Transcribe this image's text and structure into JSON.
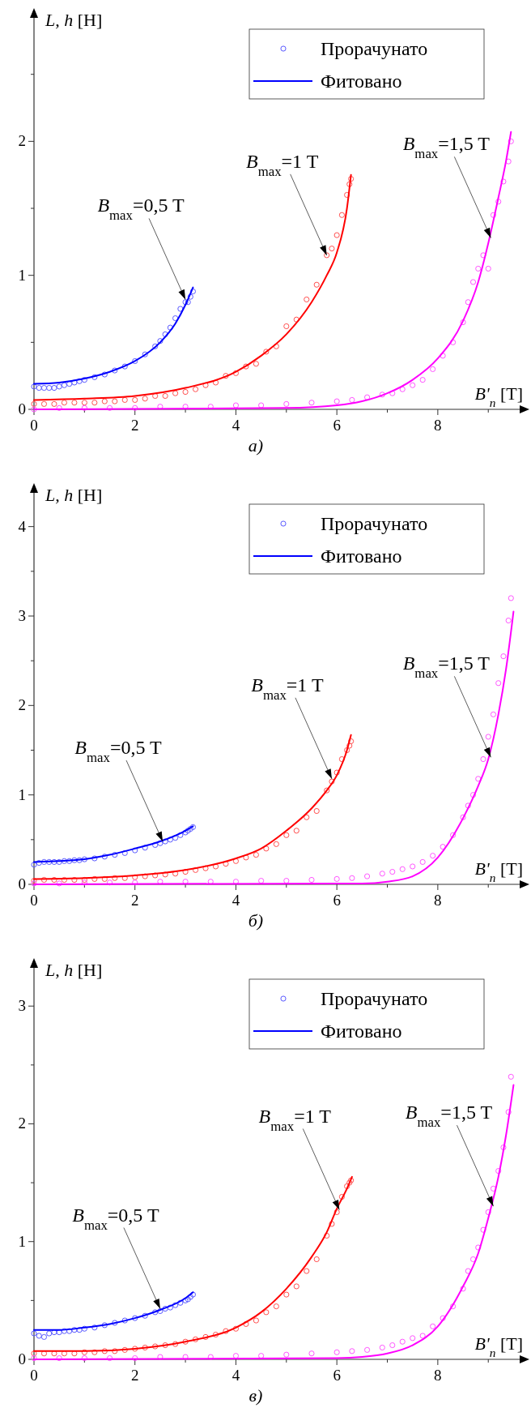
{
  "chart_data": [
    {
      "type": "scatter",
      "title": "а)",
      "xlabel": "B'$_{n}$ [T]",
      "ylabel": "L, h [H]",
      "xlim": [
        0,
        9.75
      ],
      "ylim": [
        0,
        2.97
      ],
      "xticks": [
        0,
        {
          "value": 1,
          "label": null
        },
        2,
        {
          "value": 3,
          "label": null
        },
        4,
        {
          "value": 5,
          "label": null
        },
        6,
        {
          "value": 7,
          "label": null
        },
        8,
        {
          "value": 9,
          "label": null
        }
      ],
      "yticks": [
        0,
        {
          "value": 0.5,
          "label": null
        },
        1,
        {
          "value": 1.5,
          "label": null
        },
        2,
        {
          "value": 2.5,
          "label": null
        }
      ],
      "legend": "top right",
      "annotations": [
        {
          "text": "B$_{max}$=0,5 T",
          "x": 3.0,
          "y": 0.82
        },
        {
          "text": "B$_{max}$=1 T",
          "x": 5.8,
          "y": 1.15
        },
        {
          "text": "B$_{max}$=1,5 T",
          "x": 9.05,
          "y": 1.28
        }
      ],
      "series": [
        {
          "name": "Прорачунато",
          "marker": "circle",
          "color": "#5a5aff",
          "x": [
            0,
            0.1,
            0.2,
            0.3,
            0.4,
            0.5,
            0.6,
            0.7,
            0.8,
            0.9,
            1.0,
            1.2,
            1.4,
            1.6,
            1.8,
            2.0,
            2.2,
            2.4,
            2.5,
            2.6,
            2.7,
            2.8,
            2.9,
            3.0,
            3.05,
            3.1,
            3.15
          ],
          "values": [
            0.17,
            0.16,
            0.16,
            0.16,
            0.16,
            0.17,
            0.18,
            0.19,
            0.2,
            0.21,
            0.22,
            0.24,
            0.26,
            0.29,
            0.32,
            0.36,
            0.41,
            0.47,
            0.51,
            0.56,
            0.61,
            0.68,
            0.75,
            0.8,
            0.8,
            0.84,
            0.88
          ]
        },
        {
          "name": "Фитовано",
          "type": "line",
          "marker": "none",
          "color": "#0000ff",
          "x": [
            0,
            0.5,
            1,
            1.5,
            2,
            2.5,
            2.8,
            3,
            3.15
          ],
          "values": [
            0.19,
            0.2,
            0.23,
            0.28,
            0.36,
            0.5,
            0.64,
            0.78,
            0.91
          ]
        },
        {
          "marker": "circle",
          "color": "#ff5050",
          "x": [
            0,
            0.2,
            0.4,
            0.6,
            0.8,
            1.0,
            1.2,
            1.4,
            1.6,
            1.8,
            2.0,
            2.2,
            2.4,
            2.6,
            2.8,
            3.0,
            3.2,
            3.4,
            3.6,
            3.8,
            4.0,
            4.2,
            4.4,
            4.6,
            4.8,
            5.0,
            5.2,
            5.4,
            5.6,
            5.8,
            5.9,
            6.0,
            6.1,
            6.2,
            6.25,
            6.28
          ],
          "values": [
            0.04,
            0.04,
            0.04,
            0.05,
            0.05,
            0.05,
            0.05,
            0.06,
            0.06,
            0.07,
            0.07,
            0.08,
            0.1,
            0.1,
            0.12,
            0.13,
            0.15,
            0.18,
            0.2,
            0.25,
            0.27,
            0.32,
            0.34,
            0.43,
            0.47,
            0.62,
            0.67,
            0.82,
            0.93,
            1.15,
            1.2,
            1.3,
            1.45,
            1.6,
            1.68,
            1.72
          ]
        },
        {
          "type": "line",
          "marker": "none",
          "color": "#ff0000",
          "x": [
            0,
            1,
            2,
            3,
            4,
            4.5,
            5,
            5.5,
            5.8,
            6,
            6.2,
            6.28
          ],
          "values": [
            0.07,
            0.08,
            0.1,
            0.16,
            0.28,
            0.4,
            0.56,
            0.8,
            1.0,
            1.17,
            1.5,
            1.75
          ]
        },
        {
          "marker": "circle",
          "color": "#ff55ff",
          "x": [
            0,
            0.5,
            1,
            1.5,
            2,
            2.5,
            3,
            3.5,
            4,
            4.5,
            5,
            5.5,
            6,
            6.3,
            6.6,
            6.9,
            7.1,
            7.3,
            7.5,
            7.7,
            7.9,
            8.1,
            8.3,
            8.5,
            8.6,
            8.7,
            8.8,
            8.9,
            9.0,
            9.1,
            9.2,
            9.3,
            9.4,
            9.45
          ],
          "values": [
            0,
            0.01,
            0.01,
            0.01,
            0.01,
            0.02,
            0.02,
            0.02,
            0.03,
            0.03,
            0.04,
            0.05,
            0.06,
            0.07,
            0.09,
            0.11,
            0.12,
            0.15,
            0.18,
            0.22,
            0.3,
            0.4,
            0.5,
            0.65,
            0.8,
            0.95,
            1.05,
            1.15,
            1.05,
            1.45,
            1.55,
            1.7,
            1.85,
            2.0
          ]
        },
        {
          "type": "line",
          "marker": "none",
          "color": "#ff00ff",
          "x": [
            0,
            5,
            6,
            6.5,
            7,
            7.5,
            8,
            8.5,
            8.8,
            9,
            9.2,
            9.35,
            9.45
          ],
          "values": [
            0,
            0.01,
            0.03,
            0.06,
            0.12,
            0.22,
            0.38,
            0.66,
            0.95,
            1.24,
            1.58,
            1.85,
            2.07
          ]
        }
      ]
    },
    {
      "type": "scatter",
      "title": "б)",
      "xlabel": "B'$_{n}$ [T]",
      "ylabel": "L, h [H]",
      "xlim": [
        0,
        9.75
      ],
      "ylim": [
        0,
        4.45
      ],
      "xticks": [
        0,
        {
          "value": 1,
          "label": null
        },
        2,
        {
          "value": 3,
          "label": null
        },
        4,
        {
          "value": 5,
          "label": null
        },
        6,
        {
          "value": 7,
          "label": null
        },
        8,
        {
          "value": 9,
          "label": null
        }
      ],
      "yticks": [
        0,
        {
          "value": 0.5,
          "label": null
        },
        1,
        {
          "value": 1.5,
          "label": null
        },
        2,
        {
          "value": 2.5,
          "label": null
        },
        3,
        {
          "value": 3.5,
          "label": null
        },
        4
      ],
      "legend": "top right",
      "annotations": [
        {
          "text": "B$_{max}$=0,5 T",
          "x": 2.55,
          "y": 0.48
        },
        {
          "text": "B$_{max}$=1 T",
          "x": 5.9,
          "y": 1.18
        },
        {
          "text": "B$_{max}$=1,5 T",
          "x": 9.05,
          "y": 1.42
        }
      ],
      "series": [
        {
          "name": "Прорачунато",
          "marker": "circle",
          "color": "#5a5aff",
          "x": [
            0,
            0.1,
            0.2,
            0.3,
            0.4,
            0.5,
            0.6,
            0.7,
            0.8,
            0.9,
            1.0,
            1.2,
            1.4,
            1.6,
            1.8,
            2.0,
            2.2,
            2.4,
            2.5,
            2.6,
            2.7,
            2.8,
            2.9,
            3.0,
            3.05,
            3.1,
            3.15
          ],
          "values": [
            0.22,
            0.24,
            0.25,
            0.25,
            0.25,
            0.25,
            0.26,
            0.26,
            0.27,
            0.27,
            0.28,
            0.29,
            0.31,
            0.33,
            0.35,
            0.38,
            0.41,
            0.44,
            0.46,
            0.48,
            0.5,
            0.52,
            0.55,
            0.58,
            0.6,
            0.62,
            0.64
          ]
        },
        {
          "name": "Фитовано",
          "type": "line",
          "marker": "none",
          "color": "#0000ff",
          "x": [
            0,
            0.5,
            1,
            1.5,
            2,
            2.5,
            3,
            3.15
          ],
          "values": [
            0.25,
            0.26,
            0.28,
            0.33,
            0.4,
            0.48,
            0.6,
            0.65
          ]
        },
        {
          "marker": "circle",
          "color": "#ff5050",
          "x": [
            0,
            0.2,
            0.4,
            0.6,
            0.8,
            1.0,
            1.2,
            1.4,
            1.6,
            1.8,
            2.0,
            2.2,
            2.4,
            2.6,
            2.8,
            3.0,
            3.2,
            3.4,
            3.6,
            3.8,
            4.0,
            4.2,
            4.4,
            4.6,
            4.8,
            5.0,
            5.2,
            5.4,
            5.6,
            5.8,
            5.9,
            6.0,
            6.1,
            6.2,
            6.25,
            6.28
          ],
          "values": [
            0.04,
            0.05,
            0.05,
            0.05,
            0.05,
            0.05,
            0.06,
            0.06,
            0.07,
            0.07,
            0.08,
            0.09,
            0.1,
            0.11,
            0.12,
            0.14,
            0.16,
            0.18,
            0.2,
            0.23,
            0.26,
            0.3,
            0.33,
            0.4,
            0.45,
            0.55,
            0.6,
            0.75,
            0.82,
            1.05,
            1.15,
            1.25,
            1.4,
            1.5,
            1.55,
            1.6
          ]
        },
        {
          "type": "line",
          "marker": "none",
          "color": "#ff0000",
          "x": [
            0,
            1,
            2,
            3,
            4,
            4.5,
            5,
            5.5,
            5.8,
            6,
            6.2,
            6.28
          ],
          "values": [
            0.06,
            0.07,
            0.1,
            0.16,
            0.29,
            0.4,
            0.6,
            0.85,
            1.05,
            1.22,
            1.5,
            1.67
          ]
        },
        {
          "marker": "circle",
          "color": "#ff55ff",
          "x": [
            0,
            0.5,
            1,
            1.5,
            2,
            2.5,
            3,
            3.5,
            4,
            4.5,
            5,
            5.5,
            6,
            6.3,
            6.6,
            6.9,
            7.1,
            7.3,
            7.5,
            7.7,
            7.9,
            8.1,
            8.3,
            8.5,
            8.6,
            8.7,
            8.8,
            8.9,
            9.0,
            9.1,
            9.2,
            9.3,
            9.4,
            9.45
          ],
          "values": [
            0.01,
            0.01,
            0.02,
            0.02,
            0.02,
            0.03,
            0.03,
            0.03,
            0.03,
            0.04,
            0.04,
            0.05,
            0.06,
            0.07,
            0.09,
            0.12,
            0.14,
            0.17,
            0.2,
            0.25,
            0.32,
            0.42,
            0.55,
            0.75,
            0.88,
            1.0,
            1.18,
            1.4,
            1.65,
            1.9,
            2.25,
            2.55,
            2.95,
            3.2
          ]
        },
        {
          "type": "line",
          "marker": "none",
          "color": "#ff00ff",
          "x": [
            0,
            6,
            6.5,
            7,
            7.5,
            8,
            8.5,
            8.8,
            9,
            9.2,
            9.35,
            9.5
          ],
          "values": [
            0,
            0.01,
            0.01,
            0.03,
            0.09,
            0.3,
            0.74,
            1.1,
            1.4,
            1.9,
            2.4,
            3.05
          ]
        }
      ]
    },
    {
      "type": "scatter",
      "title": "в)",
      "xlabel": "B'$_{n}$ [T]",
      "ylabel": "L, h [H]",
      "xlim": [
        0,
        9.75
      ],
      "ylim": [
        0,
        3.38
      ],
      "xticks": [
        0,
        {
          "value": 1,
          "label": null
        },
        2,
        {
          "value": 3,
          "label": null
        },
        4,
        {
          "value": 5,
          "label": null
        },
        6,
        {
          "value": 7,
          "label": null
        },
        8,
        {
          "value": 9,
          "label": null
        }
      ],
      "yticks": [
        0,
        {
          "value": 0.5,
          "label": null
        },
        1,
        {
          "value": 1.5,
          "label": null
        },
        2,
        {
          "value": 2.5,
          "label": null
        },
        3
      ],
      "legend": "top right",
      "annotations": [
        {
          "text": "B$_{max}$=0,5 T",
          "x": 2.5,
          "y": 0.43
        },
        {
          "text": "B$_{max}$=1 T",
          "x": 6.05,
          "y": 1.27
        },
        {
          "text": "B$_{max}$=1,5 T",
          "x": 9.1,
          "y": 1.3
        }
      ],
      "series": [
        {
          "name": "Прорачунато",
          "marker": "circle",
          "color": "#5a5aff",
          "x": [
            0,
            0.1,
            0.2,
            0.3,
            0.4,
            0.5,
            0.6,
            0.7,
            0.8,
            0.9,
            1.0,
            1.2,
            1.4,
            1.6,
            1.8,
            2.0,
            2.2,
            2.4,
            2.5,
            2.6,
            2.7,
            2.8,
            2.9,
            3.0,
            3.05,
            3.1,
            3.15
          ],
          "values": [
            0.22,
            0.2,
            0.19,
            0.22,
            0.23,
            0.23,
            0.24,
            0.24,
            0.25,
            0.25,
            0.26,
            0.27,
            0.29,
            0.31,
            0.33,
            0.35,
            0.37,
            0.4,
            0.41,
            0.43,
            0.44,
            0.46,
            0.48,
            0.5,
            0.51,
            0.53,
            0.55
          ]
        },
        {
          "name": "Фитовано",
          "type": "line",
          "marker": "none",
          "color": "#0000ff",
          "x": [
            0,
            0.5,
            1,
            1.5,
            2,
            2.5,
            3,
            3.15
          ],
          "values": [
            0.25,
            0.25,
            0.27,
            0.3,
            0.35,
            0.42,
            0.52,
            0.57
          ]
        },
        {
          "marker": "circle",
          "color": "#ff5050",
          "x": [
            0,
            0.2,
            0.4,
            0.6,
            0.8,
            1.0,
            1.2,
            1.4,
            1.6,
            1.8,
            2.0,
            2.2,
            2.4,
            2.6,
            2.8,
            3.0,
            3.2,
            3.4,
            3.6,
            3.8,
            4.0,
            4.2,
            4.4,
            4.6,
            4.8,
            5.0,
            5.2,
            5.4,
            5.6,
            5.8,
            5.9,
            6.0,
            6.1,
            6.2,
            6.25,
            6.28
          ],
          "values": [
            0.05,
            0.05,
            0.05,
            0.05,
            0.05,
            0.06,
            0.06,
            0.07,
            0.07,
            0.08,
            0.09,
            0.1,
            0.11,
            0.12,
            0.13,
            0.15,
            0.17,
            0.19,
            0.21,
            0.24,
            0.26,
            0.3,
            0.33,
            0.4,
            0.45,
            0.55,
            0.62,
            0.75,
            0.85,
            1.05,
            1.15,
            1.25,
            1.38,
            1.47,
            1.5,
            1.52
          ]
        },
        {
          "type": "line",
          "marker": "none",
          "color": "#ff0000",
          "x": [
            0,
            1,
            2,
            3,
            4,
            4.5,
            5,
            5.5,
            5.8,
            6,
            6.2,
            6.3
          ],
          "values": [
            0.07,
            0.07,
            0.09,
            0.15,
            0.27,
            0.4,
            0.6,
            0.87,
            1.08,
            1.28,
            1.45,
            1.55
          ]
        },
        {
          "marker": "circle",
          "color": "#ff55ff",
          "x": [
            0,
            0.5,
            1,
            1.5,
            2,
            2.5,
            3,
            3.5,
            4,
            4.5,
            5,
            5.5,
            6,
            6.3,
            6.6,
            6.9,
            7.1,
            7.3,
            7.5,
            7.7,
            7.9,
            8.1,
            8.3,
            8.5,
            8.6,
            8.7,
            8.8,
            8.9,
            9.0,
            9.1,
            9.2,
            9.3,
            9.4,
            9.45
          ],
          "values": [
            0.01,
            0.01,
            0.01,
            0.01,
            0.01,
            0.02,
            0.02,
            0.02,
            0.03,
            0.03,
            0.04,
            0.05,
            0.06,
            0.07,
            0.08,
            0.1,
            0.12,
            0.15,
            0.18,
            0.2,
            0.28,
            0.35,
            0.45,
            0.6,
            0.75,
            0.85,
            0.95,
            1.1,
            1.25,
            1.45,
            1.6,
            1.8,
            2.1,
            2.4
          ]
        },
        {
          "type": "line",
          "marker": "none",
          "color": "#ff00ff",
          "x": [
            0,
            6,
            6.5,
            7,
            7.5,
            8,
            8.5,
            8.8,
            9,
            9.2,
            9.35,
            9.5
          ],
          "values": [
            0,
            0.01,
            0.02,
            0.05,
            0.12,
            0.28,
            0.62,
            0.9,
            1.2,
            1.55,
            1.9,
            2.33
          ]
        }
      ]
    }
  ]
}
